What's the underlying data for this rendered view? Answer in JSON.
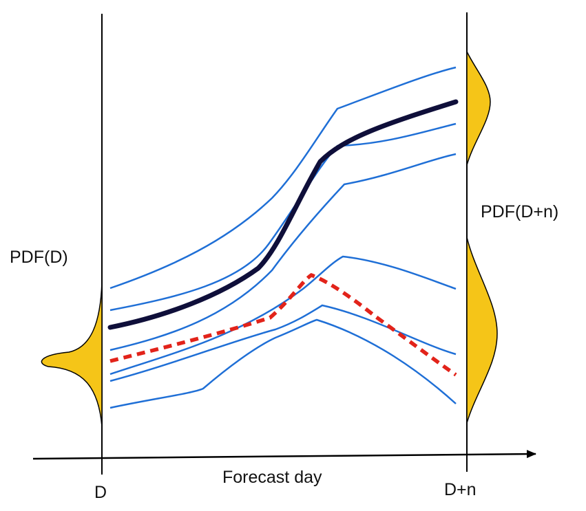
{
  "labels": {
    "pdf_initial": "PDF(D)",
    "pdf_final": "PDF(D+n)",
    "x_axis": "Forecast day",
    "start_tick": "D",
    "end_tick": "D+n"
  },
  "legend_semantics": {
    "ensemble_member": "thin blue line",
    "control_forecast": "thick dark navy line",
    "verifying_analysis": "dashed red line",
    "probability_density": "yellow filled curve"
  },
  "colors": {
    "ensemble": "#1f6fd6",
    "control": "#0f0f3a",
    "truth": "#e2231a",
    "pdf_fill": "#f5c518",
    "axis": "#000000"
  }
}
